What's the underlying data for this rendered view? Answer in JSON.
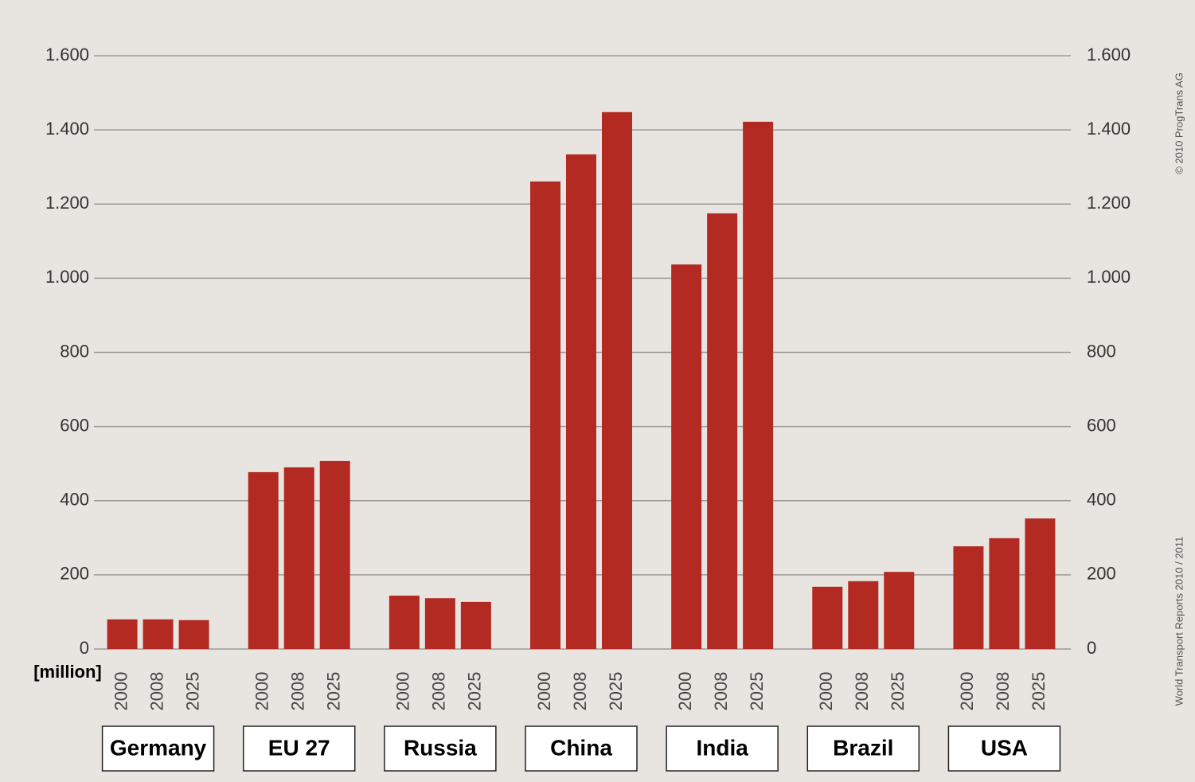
{
  "chart_data": {
    "type": "bar",
    "y_label": "[million]",
    "copyright": "© 2010 ProgTrans AG",
    "source": "World Transport Reports 2010 / 2011",
    "categories": [
      "Germany",
      "EU 27",
      "Russia",
      "China",
      "India",
      "Brazil",
      "USA"
    ],
    "series": [
      {
        "name": "2000",
        "color": "#b22a22",
        "values": [
          80,
          477,
          144,
          1261,
          1037,
          168,
          277
        ]
      },
      {
        "name": "2008",
        "color": "#b22a22",
        "values": [
          80,
          490,
          137,
          1334,
          1175,
          183,
          299
        ]
      },
      {
        "name": "2025",
        "color": "#b22a22",
        "values": [
          78,
          507,
          127,
          1448,
          1422,
          208,
          352
        ]
      }
    ],
    "ylim": [
      0,
      1600
    ],
    "yticks": [
      0,
      200,
      400,
      600,
      800,
      {
        "value": 1000,
        "label": "1.000"
      },
      {
        "value": 1200,
        "label": "1.200"
      },
      {
        "value": 1400,
        "label": "1.400"
      },
      {
        "value": 1600,
        "label": "1.600"
      }
    ],
    "y2lim": [
      0,
      1600
    ],
    "y2ticks": [
      0,
      200,
      400,
      600,
      800,
      {
        "value": 1000,
        "label": "1.000"
      },
      {
        "value": 1200,
        "label": "1.200"
      },
      {
        "value": 1400,
        "label": "1.400"
      },
      {
        "value": 1600,
        "label": "1.600"
      }
    ],
    "grid": true
  }
}
